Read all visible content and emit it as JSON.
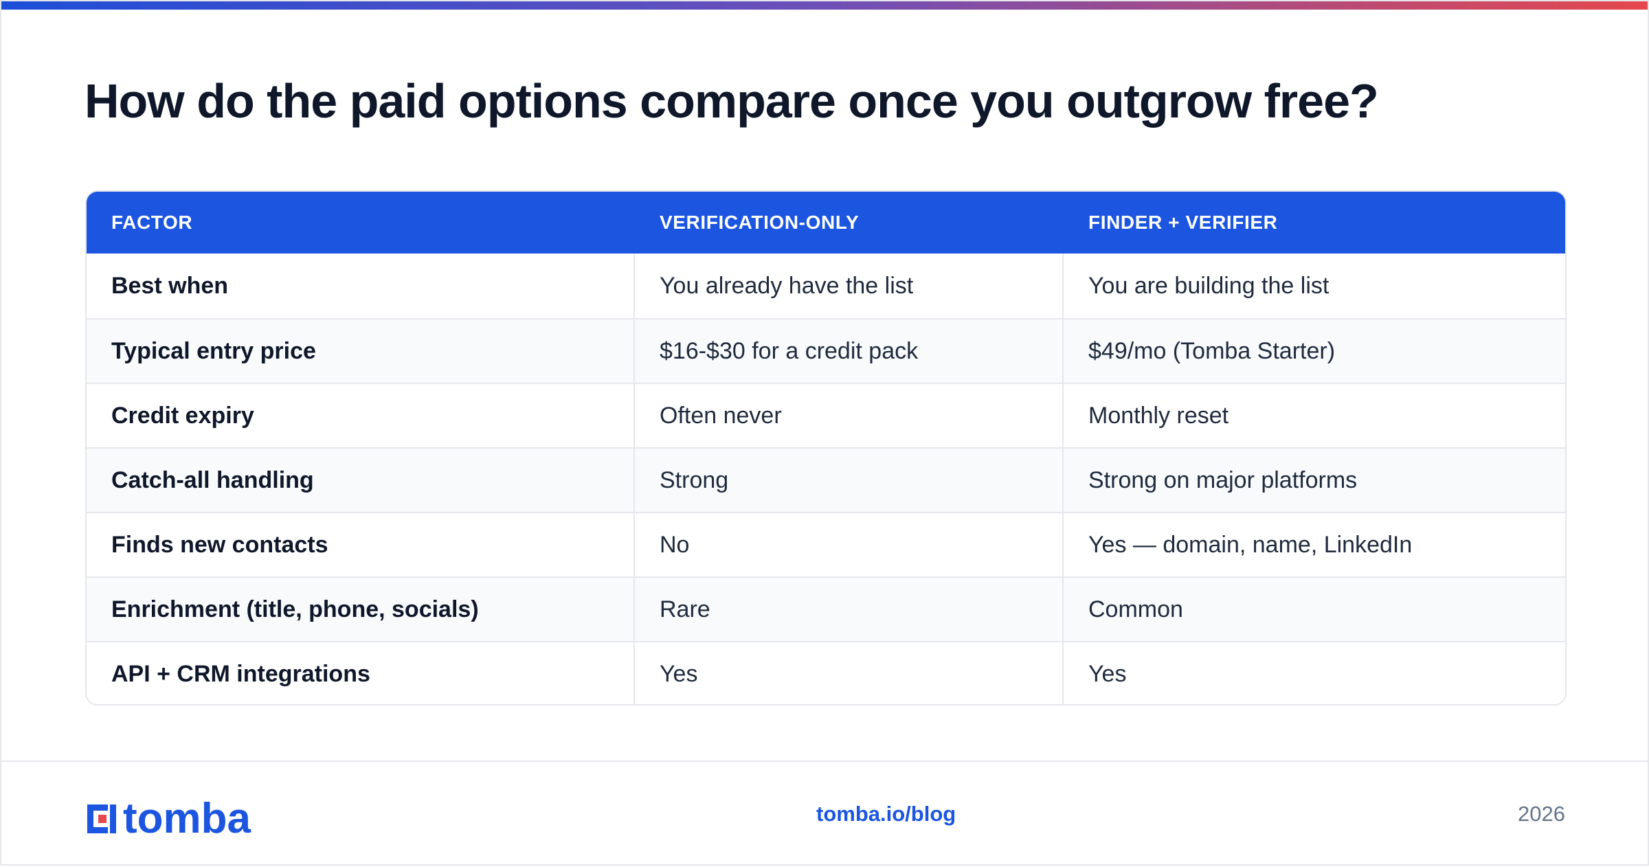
{
  "title": "How do the paid options compare once you outgrow free?",
  "table": {
    "headers": [
      "FACTOR",
      "VERIFICATION-ONLY",
      "FINDER + VERIFIER"
    ],
    "rows": [
      [
        "Best when",
        "You already have the list",
        "You are building the list"
      ],
      [
        "Typical entry price",
        "$16-$30 for a credit pack",
        "$49/mo (Tomba Starter)"
      ],
      [
        "Credit expiry",
        "Often never",
        "Monthly reset"
      ],
      [
        "Catch-all handling",
        "Strong",
        "Strong on major platforms"
      ],
      [
        "Finds new contacts",
        "No",
        "Yes — domain, name, LinkedIn"
      ],
      [
        "Enrichment (title, phone, socials)",
        "Rare",
        "Common"
      ],
      [
        "API + CRM integrations",
        "Yes",
        "Yes"
      ]
    ]
  },
  "footer": {
    "logo_text": "tomba",
    "link": "tomba.io/blog",
    "year": "2026"
  },
  "colors": {
    "accent": "#1b55e0",
    "gradient_start": "#1d4ed8",
    "gradient_end": "#e5484d",
    "alt_row": "#f8fafc",
    "border": "#e5e7eb"
  }
}
